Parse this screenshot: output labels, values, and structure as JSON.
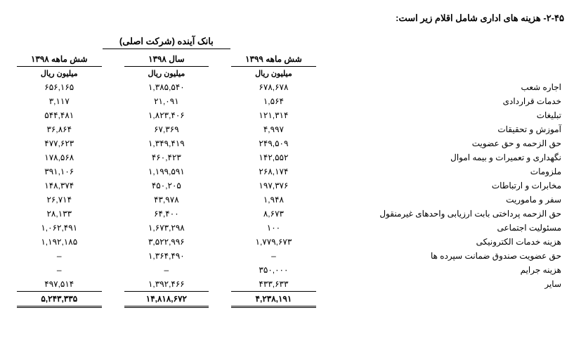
{
  "title": "۲-۴۵- هزینه های اداری شامل اقلام زیر است:",
  "bank": "بانک آینده (شرکت اصلی)",
  "cols": {
    "c1": "شش ماهه ۱۳۹۹",
    "c2": "سال ۱۳۹۸",
    "c3": "شش ماهه ۱۳۹۸"
  },
  "unit": "میلیون ریال",
  "r1": {
    "lbl": "اجاره شعب",
    "v1": "۶۷۸,۶۷۸",
    "v2": "۱,۳۸۵,۵۴۰",
    "v3": "۶۵۶,۱۶۵"
  },
  "r2": {
    "lbl": "خدمات قراردادی",
    "v1": "۱,۵۶۴",
    "v2": "۲۱,۰۹۱",
    "v3": "۳,۱۱۷"
  },
  "r3": {
    "lbl": "تبلیغات",
    "v1": "۱۲۱,۳۱۴",
    "v2": "۱,۸۲۳,۴۰۶",
    "v3": "۵۴۴,۴۸۱"
  },
  "r4": {
    "lbl": "آموزش و تحقیقات",
    "v1": "۴,۹۹۷",
    "v2": "۶۷,۳۶۹",
    "v3": "۳۶,۸۶۴"
  },
  "r5": {
    "lbl": "حق الزحمه و حق عضویت",
    "v1": "۲۴۹,۵۰۹",
    "v2": "۱,۳۴۹,۴۱۹",
    "v3": "۴۷۷,۶۲۳"
  },
  "r6": {
    "lbl": "نگهداری و تعمیرات و بیمه اموال",
    "v1": "۱۴۲,۵۵۲",
    "v2": "۴۶۰,۴۲۳",
    "v3": "۱۷۸,۵۶۸"
  },
  "r7": {
    "lbl": "ملزومات",
    "v1": "۲۶۸,۱۷۴",
    "v2": "۱,۱۹۹,۵۹۱",
    "v3": "۳۹۱,۱۰۶"
  },
  "r8": {
    "lbl": "مخابرات و ارتباطات",
    "v1": "۱۹۷,۳۷۶",
    "v2": "۴۵۰,۲۰۵",
    "v3": "۱۴۸,۳۷۴"
  },
  "r9": {
    "lbl": "سفر و ماموریت",
    "v1": "۱,۹۴۸",
    "v2": "۴۳,۹۷۸",
    "v3": "۲۶,۷۱۴"
  },
  "r10": {
    "lbl": "حق الزحمه پرداختی بابت ارزیابی واحدهای غیرمنقول",
    "v1": "۸,۶۷۳",
    "v2": "۶۴,۴۰۰",
    "v3": "۲۸,۱۳۳"
  },
  "r11": {
    "lbl": "مسئولیت اجتماعی",
    "v1": "۱۰۰",
    "v2": "۱,۶۷۳,۲۹۸",
    "v3": "۱,۰۶۲,۴۹۱"
  },
  "r12": {
    "lbl": "هزینه خدمات الکترونیکی",
    "v1": "۱,۷۷۹,۶۷۳",
    "v2": "۳,۵۲۲,۹۹۶",
    "v3": "۱,۱۹۲,۱۸۵"
  },
  "r13": {
    "lbl": "حق عضویت صندوق ضمانت سپرده ها",
    "v1": "–",
    "v2": "۱,۳۶۴,۴۹۰",
    "v3": "–"
  },
  "r14": {
    "lbl": "هزینه جرایم",
    "v1": "۳۵۰,۰۰۰",
    "v2": "–",
    "v3": "–"
  },
  "r15": {
    "lbl": "سایر",
    "v1": "۴۳۳,۶۳۳",
    "v2": "۱,۳۹۲,۴۶۶",
    "v3": "۴۹۷,۵۱۴"
  },
  "sum": {
    "v1": "۴,۲۳۸,۱۹۱",
    "v2": "۱۴,۸۱۸,۶۷۲",
    "v3": "۵,۲۴۳,۳۳۵"
  }
}
